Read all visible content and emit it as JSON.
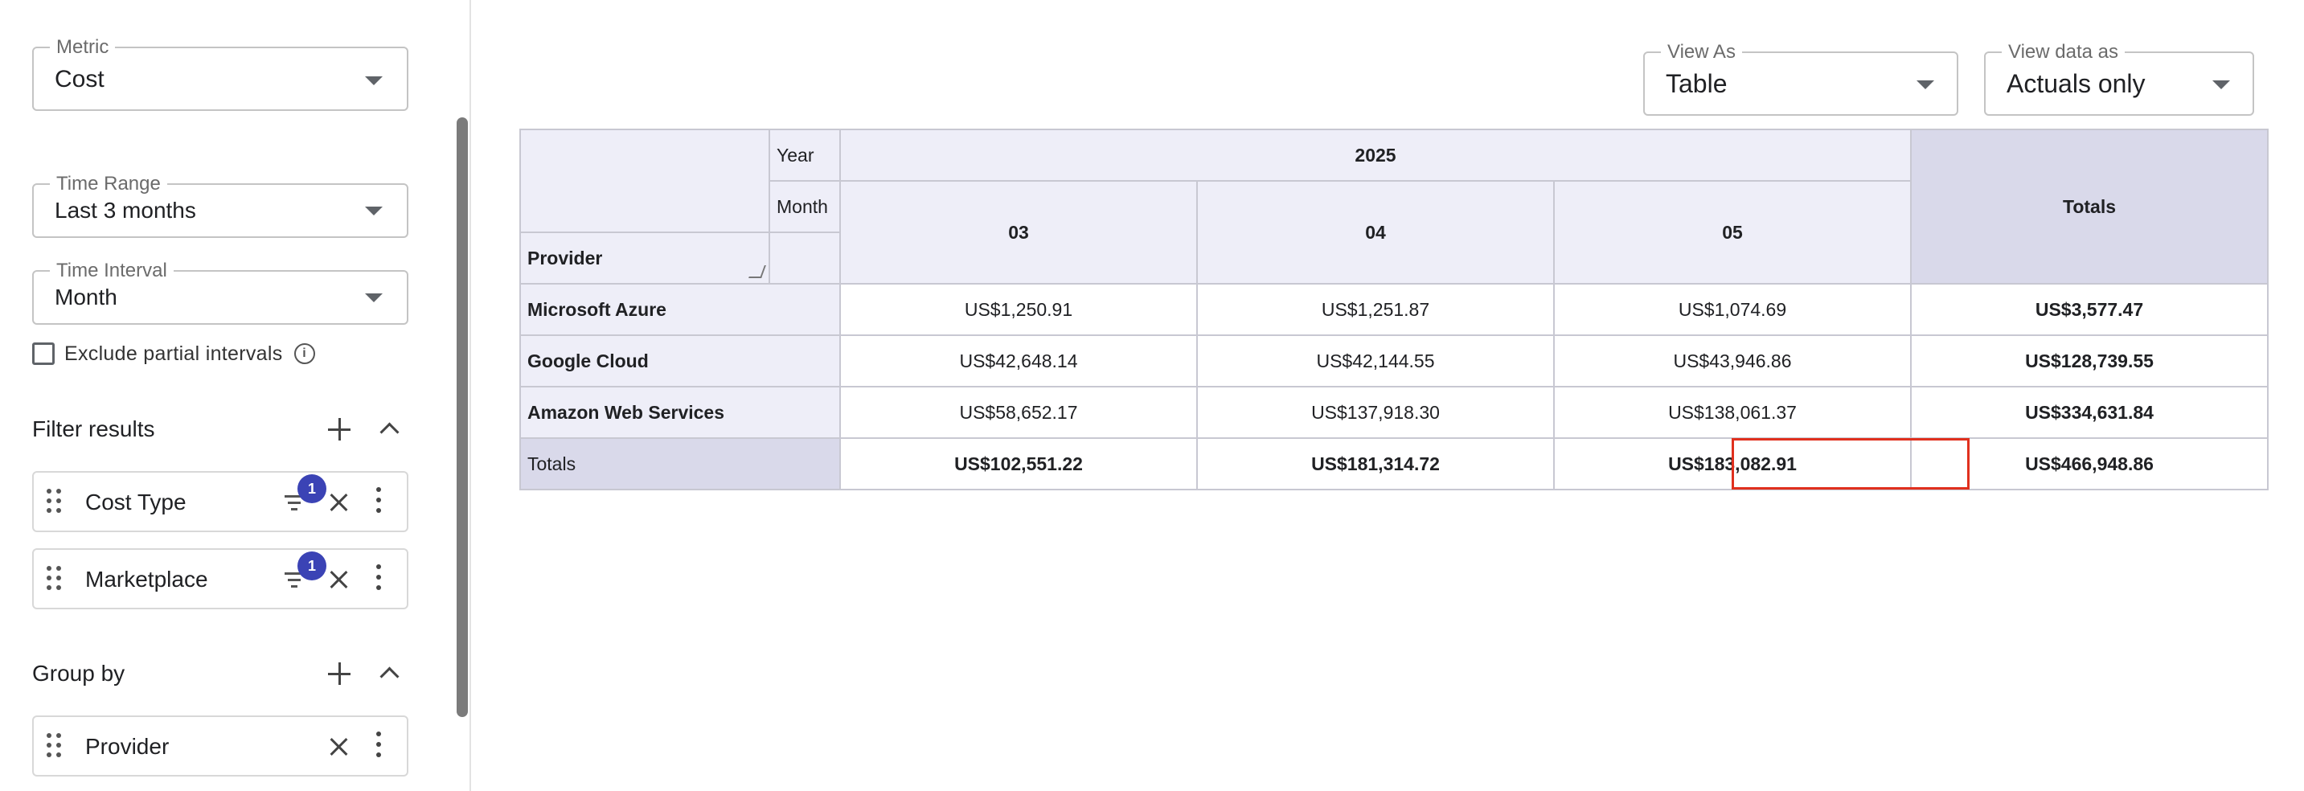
{
  "sidebar": {
    "metric": {
      "legend": "Metric",
      "value": "Cost"
    },
    "time_range": {
      "legend": "Time Range",
      "value": "Last 3 months"
    },
    "time_interval": {
      "legend": "Time Interval",
      "value": "Month"
    },
    "exclude_partial": {
      "label": "Exclude partial intervals",
      "checked": false,
      "info_icon": "info-icon"
    },
    "filter_results": {
      "title": "Filter results",
      "items": [
        {
          "label": "Cost Type",
          "badge": "1"
        },
        {
          "label": "Marketplace",
          "badge": "1"
        }
      ]
    },
    "group_by": {
      "title": "Group by",
      "items": [
        {
          "label": "Provider"
        }
      ]
    }
  },
  "main": {
    "view_as": {
      "legend": "View As",
      "value": "Table"
    },
    "view_data_as": {
      "legend": "View data as",
      "value": "Actuals only"
    },
    "table": {
      "year_label": "Year",
      "month_label": "Month",
      "provider_label": "Provider",
      "year": "2025",
      "months": [
        "03",
        "04",
        "05"
      ],
      "totals_label": "Totals",
      "rows": [
        {
          "provider": "Microsoft Azure",
          "values": [
            "US$1,250.91",
            "US$1,251.87",
            "US$1,074.69"
          ],
          "total": "US$3,577.47"
        },
        {
          "provider": "Google Cloud",
          "values": [
            "US$42,648.14",
            "US$42,144.55",
            "US$43,946.86"
          ],
          "total": "US$128,739.55"
        },
        {
          "provider": "Amazon Web Services",
          "values": [
            "US$58,652.17",
            "US$137,918.30",
            "US$138,061.37"
          ],
          "total": "US$334,631.84"
        }
      ],
      "totals_row": {
        "label": "Totals",
        "values": [
          "US$102,551.22",
          "US$181,314.72",
          "US$183,082.91"
        ],
        "total": "US$466,948.86"
      },
      "highlighted_cell": "US$181,314.72"
    }
  },
  "colors": {
    "header_bg": "#eeeef8",
    "totals_bg": "#d9d9ea",
    "badge": "#3b43b5",
    "highlight": "#e0301e"
  }
}
